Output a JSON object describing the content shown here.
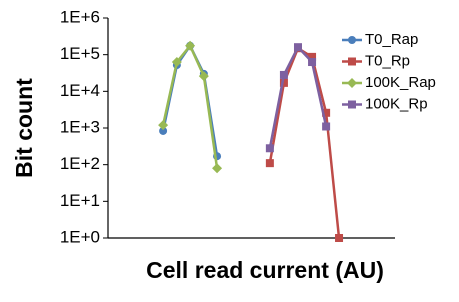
{
  "chart_data": {
    "type": "line",
    "xlabel": "Cell read current (AU)",
    "ylabel": "Bit count",
    "log_y": true,
    "xlim": [
      0,
      100
    ],
    "ylim": [
      1,
      1000000
    ],
    "yticks": [
      {
        "value": 1000000,
        "label": "1E+6"
      },
      {
        "value": 100000,
        "label": "1E+5"
      },
      {
        "value": 10000,
        "label": "1E+4"
      },
      {
        "value": 1000,
        "label": "1E+3"
      },
      {
        "value": 100,
        "label": "1E+2"
      },
      {
        "value": 10,
        "label": "1E+1"
      },
      {
        "value": 1,
        "label": "1E+0"
      }
    ],
    "legend": "upper right",
    "series": [
      {
        "name": "T0_Rap",
        "color": "#4a7ebb",
        "marker": "circle",
        "x": [
          19.2,
          24.0,
          28.6,
          33.4,
          38.0
        ],
        "values": [
          830,
          52000,
          175000,
          30000,
          170
        ]
      },
      {
        "name": "T0_Rp",
        "color": "#be4b48",
        "marker": "square",
        "x": [
          56.4,
          61.3,
          66.2,
          71.1,
          76.0,
          80.5
        ],
        "values": [
          110,
          17000,
          150000,
          87000,
          2600,
          1
        ]
      },
      {
        "name": "100K_Rap",
        "color": "#98b954",
        "marker": "diamond",
        "x": [
          19.2,
          24.0,
          28.6,
          33.4,
          38.0
        ],
        "values": [
          1200,
          63000,
          175000,
          26000,
          80
        ]
      },
      {
        "name": "100K_Rp",
        "color": "#7d60a0",
        "marker": "square",
        "x": [
          56.4,
          61.3,
          66.2,
          71.1,
          76.0
        ],
        "values": [
          280,
          28000,
          160000,
          63000,
          1100
        ]
      }
    ]
  }
}
